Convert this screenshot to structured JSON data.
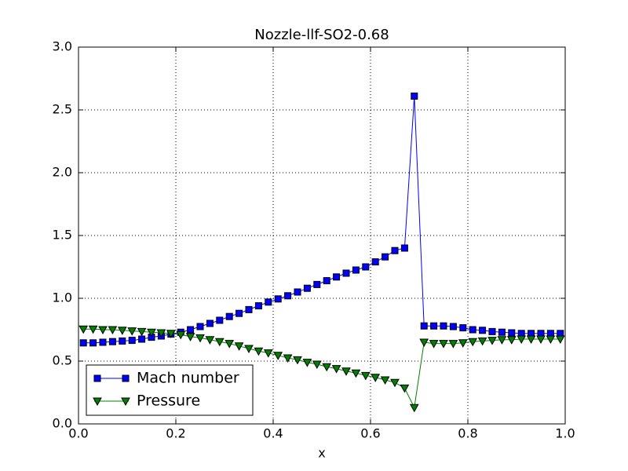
{
  "chart_data": {
    "type": "line",
    "title": "Nozzle-llf-SO2-0.68",
    "x_label": "x",
    "x": [
      0.01,
      0.03,
      0.05,
      0.07,
      0.09,
      0.11,
      0.13,
      0.15,
      0.17,
      0.19,
      0.21,
      0.23,
      0.25,
      0.27,
      0.29,
      0.31,
      0.33,
      0.35,
      0.37,
      0.39,
      0.41,
      0.43,
      0.45,
      0.47,
      0.49,
      0.51,
      0.53,
      0.55,
      0.57,
      0.59,
      0.61,
      0.63,
      0.65,
      0.67,
      0.69,
      0.71,
      0.73,
      0.75,
      0.77,
      0.79,
      0.81,
      0.83,
      0.85,
      0.87,
      0.89,
      0.91,
      0.93,
      0.95,
      0.97,
      0.99
    ],
    "series": [
      {
        "name": "Mach number",
        "color": "#0000ff",
        "marker": "square",
        "values": [
          0.645,
          0.645,
          0.65,
          0.655,
          0.66,
          0.665,
          0.675,
          0.69,
          0.7,
          0.715,
          0.73,
          0.75,
          0.775,
          0.8,
          0.825,
          0.855,
          0.88,
          0.91,
          0.94,
          0.97,
          0.995,
          1.02,
          1.05,
          1.08,
          1.11,
          1.14,
          1.17,
          1.2,
          1.225,
          1.25,
          1.29,
          1.33,
          1.38,
          1.4,
          2.61,
          0.78,
          0.78,
          0.78,
          0.775,
          0.765,
          0.75,
          0.745,
          0.735,
          0.73,
          0.725,
          0.72,
          0.72,
          0.72,
          0.72,
          0.72
        ]
      },
      {
        "name": "Pressure",
        "color": "#008000",
        "marker": "triangle-down",
        "values": [
          0.755,
          0.755,
          0.75,
          0.75,
          0.745,
          0.74,
          0.735,
          0.73,
          0.725,
          0.72,
          0.71,
          0.695,
          0.685,
          0.67,
          0.655,
          0.64,
          0.62,
          0.6,
          0.58,
          0.565,
          0.545,
          0.525,
          0.51,
          0.49,
          0.475,
          0.455,
          0.44,
          0.42,
          0.405,
          0.385,
          0.37,
          0.35,
          0.33,
          0.285,
          0.13,
          0.65,
          0.64,
          0.64,
          0.64,
          0.645,
          0.655,
          0.66,
          0.665,
          0.67,
          0.67,
          0.675,
          0.675,
          0.675,
          0.675,
          0.675
        ]
      }
    ],
    "xlim": [
      0,
      1
    ],
    "ylim": [
      0,
      3
    ],
    "xticks": [
      {
        "value": 0,
        "label": "0.0"
      },
      0.2,
      0.4,
      0.6,
      0.8,
      {
        "value": 1,
        "label": "1.0"
      }
    ],
    "yticks": [
      {
        "value": 0,
        "label": "0.0"
      },
      0.5,
      {
        "value": 1,
        "label": "1.0"
      },
      1.5,
      {
        "value": 2,
        "label": "2.0"
      },
      2.5,
      {
        "value": 3,
        "label": "3.0"
      }
    ],
    "grid": true,
    "legend": "lower-left"
  }
}
